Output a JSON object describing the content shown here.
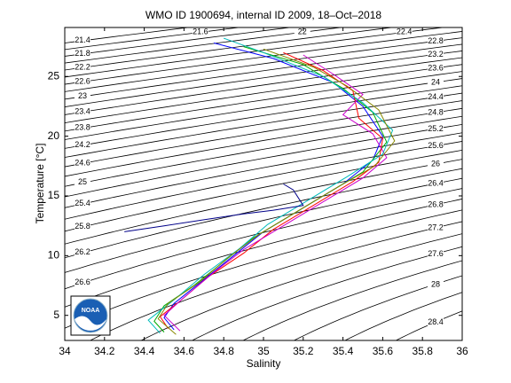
{
  "chart_data": {
    "type": "line",
    "title": "WMO ID 1900694, internal ID 2009, 18–Oct–2018",
    "x_label": "Salinity",
    "y_label": "Temperature [°C]",
    "xlim": [
      34,
      36
    ],
    "xticks": [
      34,
      34.2,
      34.4,
      34.6,
      34.8,
      35,
      35.2,
      35.4,
      35.6,
      35.8,
      36
    ],
    "ylim": [
      2.9,
      29.1
    ],
    "yticks": [
      5,
      10,
      15,
      20,
      25
    ],
    "logo_text": "NOAA",
    "density_levels": [
      21.4,
      21.6,
      21.8,
      22.0,
      22.2,
      22.4,
      22.6,
      22.8,
      23.0,
      23.2,
      23.4,
      23.6,
      23.8,
      24.0,
      24.2,
      24.4,
      24.6,
      24.8,
      25.0,
      25.2,
      25.4,
      25.6,
      25.8,
      26.0,
      26.2,
      26.4,
      26.6,
      26.8,
      27.0,
      27.2,
      27.4,
      27.6,
      27.8,
      28.0,
      28.2,
      28.4
    ],
    "series": [
      {
        "color": "#0000ff",
        "x": [
          34.75,
          35.05,
          35.35,
          35.5,
          35.6,
          35.55,
          35.4,
          35.2,
          35.0,
          34.85,
          34.7,
          34.55,
          34.5,
          34.55
        ],
        "values": [
          27.8,
          26.5,
          24.5,
          22.5,
          20.0,
          18.0,
          16.0,
          14.0,
          12.0,
          10.0,
          8.0,
          6.0,
          4.8,
          3.8
        ]
      },
      {
        "color": "#00aa00",
        "x": [
          34.9,
          35.2,
          35.4,
          35.55,
          35.62,
          35.5,
          35.3,
          35.1,
          34.95,
          34.8,
          34.65,
          34.5,
          34.45,
          34.5
        ],
        "values": [
          27.5,
          26.0,
          24.0,
          22.0,
          19.5,
          17.0,
          15.0,
          13.0,
          11.5,
          9.5,
          7.5,
          5.8,
          4.5,
          3.6
        ]
      },
      {
        "color": "#ff0000",
        "x": [
          35.1,
          35.3,
          35.45,
          35.48,
          35.6,
          35.58,
          35.45,
          35.25,
          35.05,
          34.9,
          34.72,
          34.58,
          34.48,
          34.52
        ],
        "values": [
          27.0,
          25.5,
          23.8,
          21.5,
          19.8,
          17.8,
          16.2,
          14.2,
          12.2,
          10.2,
          8.2,
          6.2,
          4.9,
          3.9
        ]
      },
      {
        "color": "#cc00cc",
        "x": [
          35.2,
          35.35,
          35.5,
          35.4,
          35.55,
          35.62,
          35.5,
          35.3,
          35.1,
          34.9,
          34.75,
          34.6,
          34.5,
          34.58
        ],
        "values": [
          26.8,
          25.2,
          23.5,
          21.8,
          20.2,
          18.2,
          16.5,
          14.5,
          12.5,
          10.5,
          8.6,
          6.5,
          5.0,
          3.7
        ]
      },
      {
        "color": "#00bbbb",
        "x": [
          34.8,
          35.0,
          35.3,
          35.5,
          35.65,
          35.6,
          35.42,
          35.22,
          35.02,
          34.88,
          34.7,
          34.55,
          34.42,
          34.48
        ],
        "values": [
          28.2,
          27.0,
          25.0,
          22.8,
          20.5,
          18.5,
          16.6,
          14.6,
          12.6,
          10.6,
          8.4,
          6.3,
          4.6,
          3.5
        ]
      },
      {
        "color": "#888800",
        "x": [
          35.0,
          35.25,
          35.42,
          35.58,
          35.66,
          35.56,
          35.38,
          35.18,
          34.98,
          34.82,
          34.68,
          34.52,
          34.47,
          34.56
        ],
        "values": [
          27.3,
          25.8,
          24.2,
          22.2,
          19.6,
          17.5,
          15.8,
          13.8,
          11.8,
          9.8,
          7.8,
          6.0,
          4.7,
          3.4
        ]
      },
      {
        "color": "#000088",
        "x": [
          34.3,
          34.5,
          34.7,
          34.9,
          35.05,
          35.2,
          35.15,
          35.1
        ],
        "values": [
          12.0,
          12.5,
          13.0,
          13.5,
          13.8,
          14.2,
          15.5,
          16.0
        ]
      }
    ]
  }
}
